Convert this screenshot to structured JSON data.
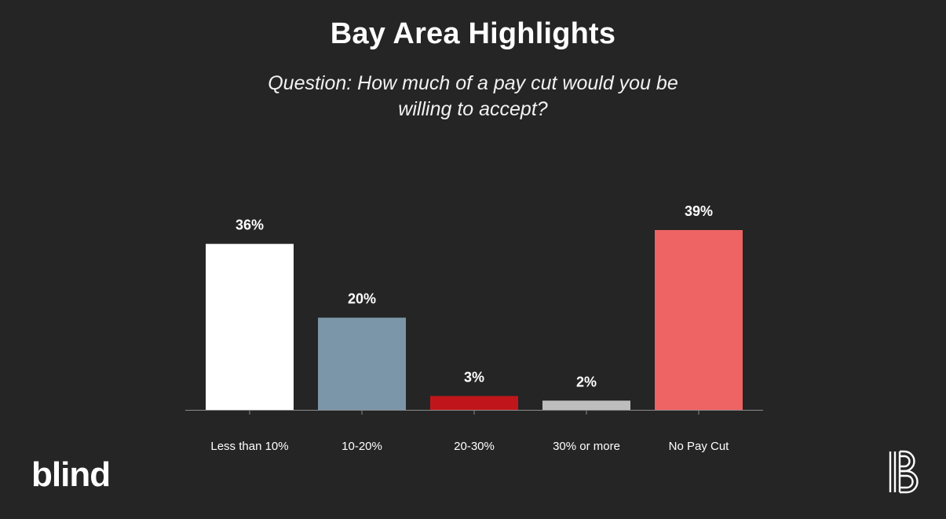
{
  "title": "Bay Area Highlights",
  "subtitle": "Question: How much of a pay cut would you be willing to accept?",
  "brand": {
    "wordmark": "blind",
    "icon": "blind-b-icon"
  },
  "colors": {
    "background": "#252525",
    "axis": "#8a8a8a",
    "text": "#ffffff"
  },
  "chart_data": {
    "type": "bar",
    "title": "Bay Area Highlights",
    "subtitle": "Question: How much of a pay cut would you be willing to accept?",
    "categories": [
      "Less than 10%",
      "10-20%",
      "20-30%",
      "30% or more",
      "No Pay Cut"
    ],
    "values": [
      36,
      20,
      3,
      2,
      39
    ],
    "value_labels": [
      "36%",
      "20%",
      "3%",
      "2%",
      "39%"
    ],
    "bar_colors": [
      "#ffffff",
      "#7b96a8",
      "#c0161b",
      "#bdbdbd",
      "#ee6363"
    ],
    "unit": "%",
    "ylim": [
      0,
      39
    ],
    "grid": false,
    "legend": "none"
  }
}
